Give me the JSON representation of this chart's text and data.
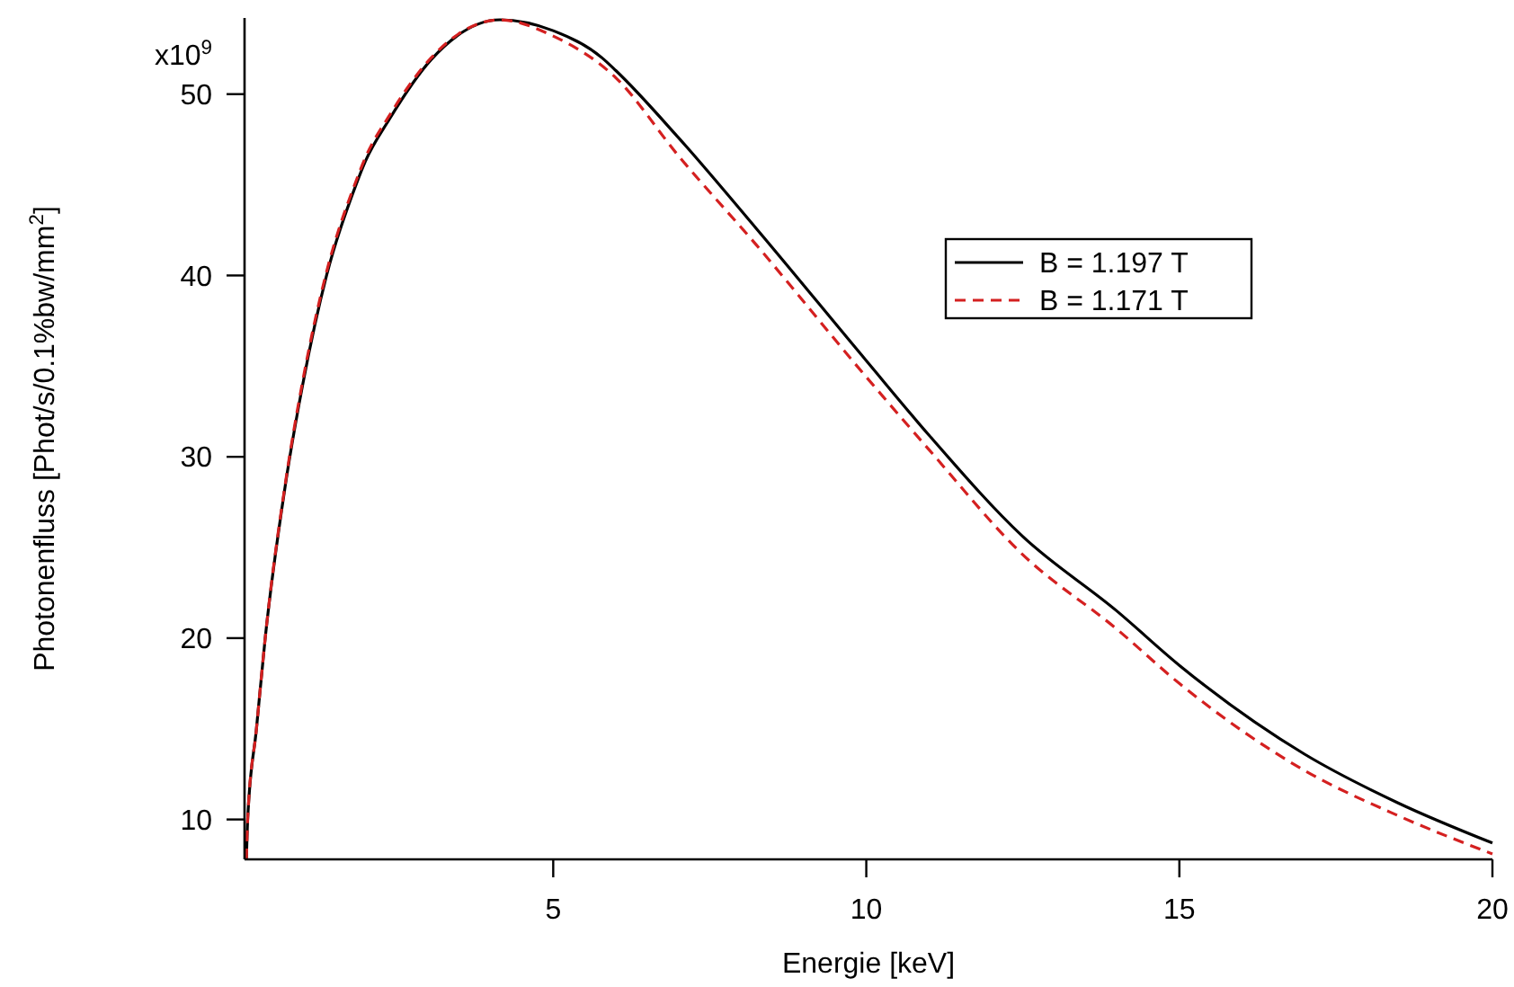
{
  "chart_data": {
    "type": "line",
    "xlabel": "Energie [keV]",
    "ylabel": "Photonenfluss [Phot/s/0.1%bw/mm$^{2}$]",
    "xlim": [
      0.07,
      20
    ],
    "ylim": [
      7.8,
      54.2
    ],
    "xticks": [
      5,
      10,
      15,
      20
    ],
    "yticks": [
      10,
      20,
      30,
      40,
      50
    ],
    "annotations": [
      "x10$^{9}$"
    ],
    "grid": false,
    "legend": "top right",
    "series": [
      {
        "name": "B = 1.197 T",
        "color": "#000000",
        "line_style": "solid",
        "x": [
          0.1,
          0.12,
          0.26,
          0.4,
          0.72,
          1,
          1.38,
          1.85,
          2,
          2.38,
          3.05,
          4.15,
          5,
          5.78,
          6,
          7,
          8.24,
          10,
          11,
          12.5,
          14,
          15,
          17,
          18.5,
          20
        ],
        "values": [
          7.8,
          10,
          15,
          20,
          28.4,
          34,
          40,
          45,
          46.3,
          48.6,
          51.9,
          54.1,
          53.5,
          52.0,
          51.3,
          47.6,
          42.6,
          35.3,
          31.2,
          25.6,
          21.5,
          18.5,
          13.6,
          10.9,
          8.7
        ]
      },
      {
        "name": "B = 1.171 T",
        "color": "#d42020",
        "line_style": "dashed",
        "x": [
          0.1,
          0.12,
          0.26,
          0.4,
          0.72,
          1,
          1.38,
          1.85,
          2,
          2.38,
          3.05,
          4.15,
          5,
          6,
          7,
          8.24,
          10,
          11,
          12.5,
          14,
          15,
          17,
          18.5,
          20
        ],
        "values": [
          7.8,
          10,
          15,
          20,
          28.5,
          34.2,
          40.2,
          45.2,
          46.5,
          48.8,
          52.0,
          54.1,
          53.2,
          50.9,
          46.6,
          41.7,
          34.4,
          30.4,
          24.6,
          20.5,
          17.5,
          12.7,
          10.2,
          8.1
        ]
      }
    ]
  }
}
